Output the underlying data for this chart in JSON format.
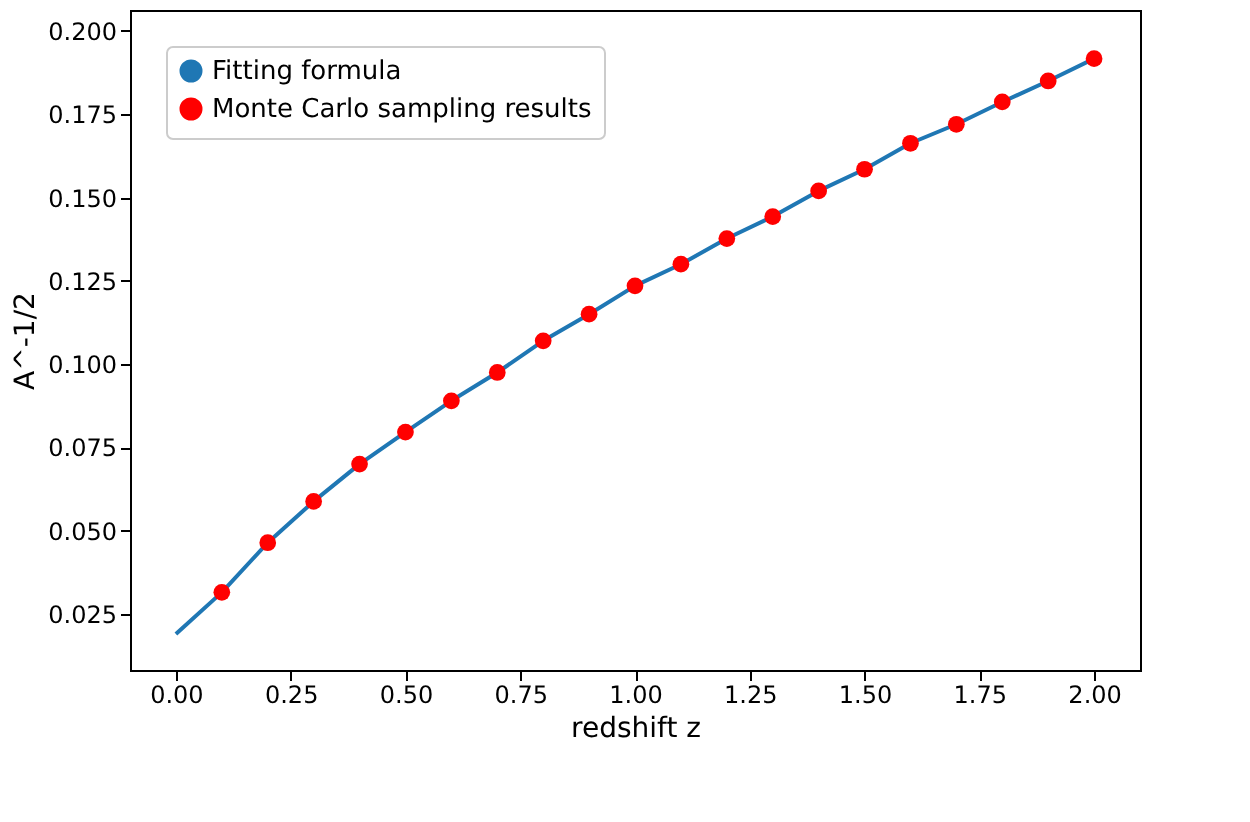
{
  "chart_data": {
    "type": "scatter",
    "xlabel": "redshift z",
    "ylabel": "A^-1/2",
    "legend": "top left",
    "grid": false,
    "xlim": [
      -0.1,
      2.1
    ],
    "ylim": [
      0.0082,
      0.2063
    ],
    "xticks": [
      {
        "value": 0,
        "label": "0.00"
      },
      {
        "value": 0.25,
        "label": "0.25"
      },
      {
        "value": 0.5,
        "label": "0.50"
      },
      {
        "value": 0.75,
        "label": "0.75"
      },
      {
        "value": 1,
        "label": "1.00"
      },
      {
        "value": 1.25,
        "label": "1.25"
      },
      {
        "value": 1.5,
        "label": "1.50"
      },
      {
        "value": 1.75,
        "label": "1.75"
      },
      {
        "value": 2,
        "label": "2.00"
      }
    ],
    "yticks": [
      {
        "value": 0.025,
        "label": "0.025"
      },
      {
        "value": 0.05,
        "label": "0.050"
      },
      {
        "value": 0.075,
        "label": "0.075"
      },
      {
        "value": 0.1,
        "label": "0.100"
      },
      {
        "value": 0.125,
        "label": "0.125"
      },
      {
        "value": 0.15,
        "label": "0.150"
      },
      {
        "value": 0.175,
        "label": "0.175"
      },
      {
        "value": 0.2,
        "label": "0.200"
      }
    ],
    "series": [
      {
        "name": "Fitting formula",
        "type": "line",
        "color": "#1f77b4",
        "line_style": "solid",
        "marker": "none",
        "x": [
          0,
          0.1,
          0.2,
          0.3,
          0.4,
          0.5,
          0.6,
          0.7,
          0.8,
          0.9,
          1.0,
          1.1,
          1.2,
          1.3,
          1.4,
          1.5,
          1.6,
          1.7,
          1.8,
          1.9,
          2.0
        ],
        "values": [
          0.019,
          0.0315,
          0.0464,
          0.0588,
          0.07,
          0.0796,
          0.089,
          0.0975,
          0.107,
          0.115,
          0.1235,
          0.13,
          0.1377,
          0.1443,
          0.152,
          0.1585,
          0.1663,
          0.172,
          0.1787,
          0.185,
          0.1917
        ]
      },
      {
        "name": "Monte Carlo sampling results",
        "color": "#ff0000",
        "marker": "circle",
        "x": [
          0.1,
          0.2,
          0.3,
          0.4,
          0.5,
          0.6,
          0.7,
          0.8,
          0.9,
          1.0,
          1.1,
          1.2,
          1.3,
          1.4,
          1.5,
          1.6,
          1.7,
          1.8,
          1.9,
          2.0
        ],
        "values": [
          0.0315,
          0.0464,
          0.0588,
          0.07,
          0.0796,
          0.089,
          0.0975,
          0.107,
          0.115,
          0.1235,
          0.13,
          0.1377,
          0.1443,
          0.152,
          0.1585,
          0.1663,
          0.172,
          0.1787,
          0.185,
          0.1917
        ]
      }
    ]
  }
}
